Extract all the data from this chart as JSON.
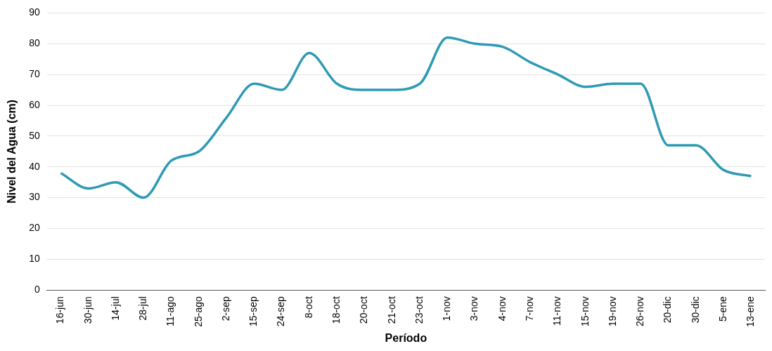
{
  "chart_data": {
    "type": "line",
    "xlabel": "Período",
    "ylabel": "Nivel del Agua (cm)",
    "categories": [
      "16-jun",
      "30-jun",
      "14-jul",
      "28-jul",
      "11-ago",
      "25-ago",
      "2-sep",
      "15-sep",
      "24-sep",
      "8-oct",
      "18-oct",
      "20-oct",
      "21-oct",
      "23-oct",
      "1-nov",
      "3-nov",
      "4-nov",
      "7-nov",
      "11-nov",
      "15-nov",
      "19-nov",
      "26-nov",
      "20-dic",
      "30-dic",
      "5-ene",
      "13-ene"
    ],
    "series": [
      {
        "color": "#2e9ab5",
        "values": [
          38,
          33,
          35,
          30,
          42,
          45,
          56,
          67,
          65,
          77,
          67,
          65,
          65,
          67,
          82,
          80,
          79,
          74,
          70,
          66,
          67,
          67,
          47,
          47,
          39,
          37
        ]
      }
    ],
    "ylim": [
      0,
      90
    ],
    "yticks": [
      0,
      10,
      20,
      30,
      40,
      50,
      60,
      70,
      80,
      90
    ],
    "grid": "y",
    "legend": false,
    "marker": "none",
    "line_style": "solid"
  }
}
